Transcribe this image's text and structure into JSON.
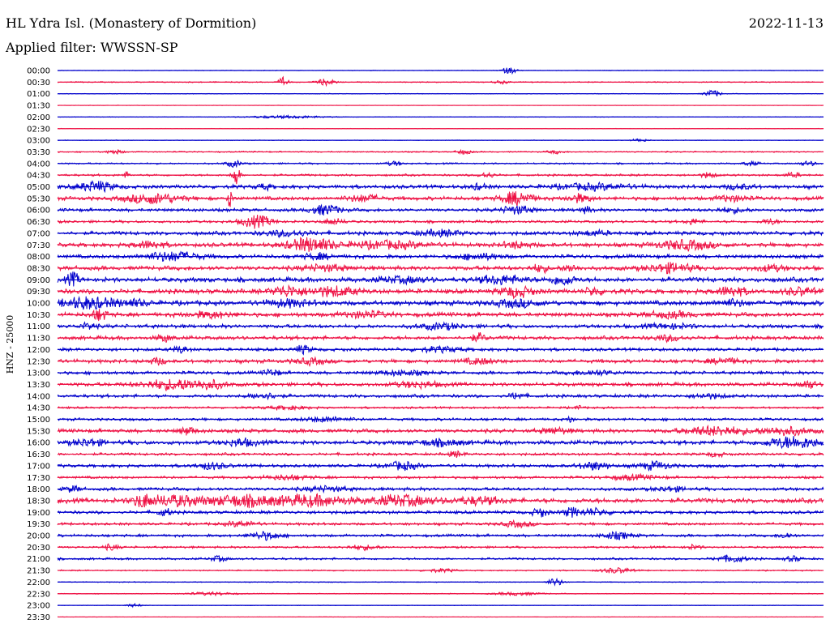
{
  "header": {
    "title": "HL Ydra Isl. (Monastery of Dormition)",
    "date": "2022-11-13",
    "filter_text": "Applied filter: WWSSN-SP"
  },
  "chart_data": {
    "type": "line",
    "title": "HL Ydra Isl. (Monastery of Dormition)",
    "date": "2022-11-13",
    "filter": "WWSSN-SP",
    "ylabel": "HNZ - 25000",
    "trace_colors": [
      "#0000cc",
      "#ee1144"
    ],
    "rows": [
      {
        "label": "00:00",
        "activity": 0.05,
        "events": [
          [
            0.59,
            0.6,
            0.01
          ]
        ]
      },
      {
        "label": "00:30",
        "activity": 0.1,
        "events": [
          [
            0.295,
            0.9,
            0.006
          ],
          [
            0.35,
            0.6,
            0.012
          ],
          [
            0.58,
            0.3,
            0.01
          ]
        ]
      },
      {
        "label": "01:00",
        "activity": 0.06,
        "events": [
          [
            0.855,
            0.7,
            0.01
          ]
        ]
      },
      {
        "label": "01:30",
        "activity": 0.04,
        "events": []
      },
      {
        "label": "02:00",
        "activity": 0.05,
        "events": [
          [
            0.3,
            0.25,
            0.05
          ]
        ]
      },
      {
        "label": "02:30",
        "activity": 0.05,
        "events": []
      },
      {
        "label": "03:00",
        "activity": 0.06,
        "events": [
          [
            0.76,
            0.3,
            0.01
          ]
        ]
      },
      {
        "label": "03:30",
        "activity": 0.12,
        "events": [
          [
            0.075,
            0.4,
            0.01
          ],
          [
            0.53,
            0.4,
            0.01
          ],
          [
            0.65,
            0.3,
            0.01
          ]
        ]
      },
      {
        "label": "04:00",
        "activity": 0.15,
        "events": [
          [
            0.23,
            0.6,
            0.01
          ],
          [
            0.44,
            0.4,
            0.01
          ],
          [
            0.905,
            0.4,
            0.01
          ],
          [
            0.98,
            0.4,
            0.01
          ]
        ]
      },
      {
        "label": "04:30",
        "activity": 0.2,
        "events": [
          [
            0.233,
            1.8,
            0.005
          ],
          [
            0.09,
            0.5,
            0.005
          ],
          [
            0.56,
            0.5,
            0.01
          ],
          [
            0.85,
            0.5,
            0.01
          ],
          [
            0.96,
            0.4,
            0.01
          ]
        ]
      },
      {
        "label": "05:00",
        "activity": 0.35,
        "events": [
          [
            0.05,
            0.9,
            0.022
          ],
          [
            0.27,
            0.5,
            0.01
          ],
          [
            0.55,
            0.5,
            0.01
          ],
          [
            0.7,
            0.5,
            0.05
          ],
          [
            0.89,
            0.4,
            0.02
          ]
        ]
      },
      {
        "label": "05:30",
        "activity": 0.35,
        "events": [
          [
            0.125,
            0.9,
            0.035
          ],
          [
            0.226,
            1.6,
            0.004
          ],
          [
            0.4,
            0.6,
            0.02
          ],
          [
            0.6,
            1.2,
            0.02
          ],
          [
            0.68,
            0.7,
            0.015
          ],
          [
            0.88,
            0.5,
            0.02
          ]
        ]
      },
      {
        "label": "06:00",
        "activity": 0.3,
        "events": [
          [
            0.35,
            0.9,
            0.02
          ],
          [
            0.6,
            0.7,
            0.02
          ],
          [
            0.69,
            0.5,
            0.01
          ],
          [
            0.88,
            0.4,
            0.02
          ]
        ]
      },
      {
        "label": "06:30",
        "activity": 0.25,
        "events": [
          [
            0.26,
            1.1,
            0.02
          ],
          [
            0.36,
            0.5,
            0.015
          ],
          [
            0.83,
            0.5,
            0.01
          ],
          [
            0.93,
            0.5,
            0.01
          ]
        ]
      },
      {
        "label": "07:00",
        "activity": 0.35,
        "events": [
          [
            0.3,
            0.5,
            0.03
          ],
          [
            0.5,
            0.5,
            0.03
          ],
          [
            0.7,
            0.4,
            0.02
          ]
        ]
      },
      {
        "label": "07:30",
        "activity": 0.4,
        "events": [
          [
            0.33,
            1.2,
            0.03
          ],
          [
            0.43,
            0.6,
            0.05
          ],
          [
            0.82,
            0.8,
            0.035
          ],
          [
            0.12,
            0.6,
            0.02
          ],
          [
            0.6,
            0.5,
            0.02
          ]
        ]
      },
      {
        "label": "08:00",
        "activity": 0.35,
        "events": [
          [
            0.15,
            0.8,
            0.035
          ],
          [
            0.34,
            0.5,
            0.02
          ],
          [
            0.55,
            0.5,
            0.03
          ]
        ]
      },
      {
        "label": "08:30",
        "activity": 0.4,
        "events": [
          [
            0.8,
            0.8,
            0.03
          ],
          [
            0.63,
            0.7,
            0.01
          ],
          [
            0.67,
            0.6,
            0.01
          ],
          [
            0.35,
            0.5,
            0.03
          ],
          [
            0.93,
            0.5,
            0.02
          ]
        ]
      },
      {
        "label": "09:00",
        "activity": 0.45,
        "events": [
          [
            0.02,
            1.2,
            0.008
          ],
          [
            0.58,
            0.7,
            0.03
          ],
          [
            0.66,
            0.9,
            0.015
          ],
          [
            0.45,
            0.5,
            0.03
          ]
        ]
      },
      {
        "label": "09:30",
        "activity": 0.45,
        "events": [
          [
            0.3,
            0.9,
            0.02
          ],
          [
            0.36,
            0.8,
            0.03
          ],
          [
            0.6,
            0.9,
            0.02
          ],
          [
            0.7,
            0.7,
            0.01
          ],
          [
            0.88,
            0.8,
            0.02
          ],
          [
            0.97,
            0.6,
            0.02
          ]
        ]
      },
      {
        "label": "10:00",
        "activity": 0.45,
        "events": [
          [
            0.04,
            1.0,
            0.035
          ],
          [
            0.1,
            0.5,
            0.02
          ],
          [
            0.3,
            0.6,
            0.03
          ],
          [
            0.6,
            0.6,
            0.03
          ],
          [
            0.88,
            0.5,
            0.02
          ]
        ]
      },
      {
        "label": "10:30",
        "activity": 0.4,
        "events": [
          [
            0.055,
            1.0,
            0.01
          ],
          [
            0.2,
            0.5,
            0.03
          ],
          [
            0.4,
            0.5,
            0.03
          ],
          [
            0.8,
            0.5,
            0.03
          ]
        ]
      },
      {
        "label": "11:00",
        "activity": 0.35,
        "events": [
          [
            0.04,
            0.6,
            0.01
          ],
          [
            0.5,
            0.5,
            0.03
          ],
          [
            0.8,
            0.4,
            0.03
          ]
        ]
      },
      {
        "label": "11:30",
        "activity": 0.35,
        "events": [
          [
            0.14,
            0.6,
            0.01
          ],
          [
            0.55,
            0.7,
            0.01
          ],
          [
            0.8,
            0.5,
            0.02
          ]
        ]
      },
      {
        "label": "12:00",
        "activity": 0.3,
        "events": [
          [
            0.16,
            0.6,
            0.01
          ],
          [
            0.32,
            0.7,
            0.01
          ],
          [
            0.5,
            0.4,
            0.03
          ]
        ]
      },
      {
        "label": "12:30",
        "activity": 0.35,
        "events": [
          [
            0.13,
            0.6,
            0.01
          ],
          [
            0.33,
            0.5,
            0.02
          ],
          [
            0.55,
            0.5,
            0.02
          ],
          [
            0.87,
            0.5,
            0.02
          ]
        ]
      },
      {
        "label": "13:00",
        "activity": 0.3,
        "events": [
          [
            0.28,
            0.6,
            0.01
          ],
          [
            0.45,
            0.4,
            0.03
          ],
          [
            0.7,
            0.4,
            0.03
          ]
        ]
      },
      {
        "label": "13:30",
        "activity": 0.35,
        "events": [
          [
            0.15,
            0.9,
            0.04
          ],
          [
            0.2,
            0.6,
            0.02
          ],
          [
            0.47,
            0.5,
            0.03
          ],
          [
            0.98,
            0.7,
            0.01
          ]
        ]
      },
      {
        "label": "14:00",
        "activity": 0.3,
        "events": [
          [
            0.27,
            0.5,
            0.02
          ],
          [
            0.6,
            0.6,
            0.01
          ],
          [
            0.85,
            0.4,
            0.02
          ]
        ]
      },
      {
        "label": "14:30",
        "activity": 0.2,
        "events": [
          [
            0.68,
            0.8,
            0.003
          ],
          [
            0.3,
            0.3,
            0.03
          ]
        ]
      },
      {
        "label": "15:00",
        "activity": 0.25,
        "events": [
          [
            0.67,
            0.6,
            0.004
          ],
          [
            0.35,
            0.4,
            0.03
          ]
        ]
      },
      {
        "label": "15:30",
        "activity": 0.35,
        "events": [
          [
            0.17,
            0.7,
            0.01
          ],
          [
            0.65,
            0.5,
            0.02
          ],
          [
            0.86,
            0.8,
            0.04
          ],
          [
            0.95,
            0.7,
            0.03
          ]
        ]
      },
      {
        "label": "16:00",
        "activity": 0.4,
        "events": [
          [
            0.04,
            0.6,
            0.02
          ],
          [
            0.24,
            0.6,
            0.02
          ],
          [
            0.5,
            0.5,
            0.03
          ],
          [
            0.96,
            1.0,
            0.035
          ]
        ]
      },
      {
        "label": "16:30",
        "activity": 0.25,
        "events": [
          [
            0.52,
            0.5,
            0.01
          ],
          [
            0.86,
            0.4,
            0.01
          ]
        ]
      },
      {
        "label": "17:00",
        "activity": 0.3,
        "events": [
          [
            0.2,
            0.6,
            0.02
          ],
          [
            0.45,
            0.7,
            0.02
          ],
          [
            0.7,
            0.7,
            0.02
          ],
          [
            0.78,
            0.7,
            0.02
          ]
        ]
      },
      {
        "label": "17:30",
        "activity": 0.25,
        "events": [
          [
            0.3,
            0.4,
            0.03
          ],
          [
            0.75,
            0.4,
            0.03
          ]
        ]
      },
      {
        "label": "18:00",
        "activity": 0.3,
        "events": [
          [
            0.02,
            0.5,
            0.01
          ],
          [
            0.35,
            0.4,
            0.03
          ],
          [
            0.8,
            0.4,
            0.02
          ]
        ]
      },
      {
        "label": "18:30",
        "activity": 0.45,
        "events": [
          [
            0.11,
            1.0,
            0.01
          ],
          [
            0.15,
            0.9,
            0.04
          ],
          [
            0.24,
            0.9,
            0.04
          ],
          [
            0.33,
            0.9,
            0.05
          ],
          [
            0.45,
            0.9,
            0.04
          ],
          [
            0.55,
            0.6,
            0.03
          ]
        ]
      },
      {
        "label": "19:00",
        "activity": 0.3,
        "events": [
          [
            0.14,
            0.6,
            0.01
          ],
          [
            0.63,
            0.8,
            0.01
          ],
          [
            0.67,
            0.8,
            0.01
          ],
          [
            0.7,
            0.6,
            0.02
          ]
        ]
      },
      {
        "label": "19:30",
        "activity": 0.25,
        "events": [
          [
            0.24,
            0.5,
            0.02
          ],
          [
            0.6,
            0.5,
            0.02
          ]
        ]
      },
      {
        "label": "20:00",
        "activity": 0.25,
        "events": [
          [
            0.27,
            0.7,
            0.02
          ],
          [
            0.73,
            0.6,
            0.02
          ],
          [
            0.95,
            0.5,
            0.01
          ]
        ]
      },
      {
        "label": "20:30",
        "activity": 0.2,
        "events": [
          [
            0.07,
            0.5,
            0.01
          ],
          [
            0.4,
            0.4,
            0.02
          ],
          [
            0.83,
            0.4,
            0.01
          ]
        ]
      },
      {
        "label": "21:00",
        "activity": 0.2,
        "events": [
          [
            0.21,
            0.5,
            0.01
          ],
          [
            0.88,
            0.6,
            0.02
          ],
          [
            0.96,
            0.5,
            0.01
          ]
        ]
      },
      {
        "label": "21:30",
        "activity": 0.12,
        "events": [
          [
            0.73,
            0.5,
            0.02
          ],
          [
            0.5,
            0.3,
            0.02
          ]
        ]
      },
      {
        "label": "22:00",
        "activity": 0.08,
        "events": [
          [
            0.65,
            0.7,
            0.01
          ]
        ]
      },
      {
        "label": "22:30",
        "activity": 0.08,
        "events": [
          [
            0.2,
            0.3,
            0.03
          ],
          [
            0.6,
            0.3,
            0.03
          ]
        ]
      },
      {
        "label": "23:00",
        "activity": 0.05,
        "events": [
          [
            0.1,
            0.3,
            0.01
          ]
        ]
      },
      {
        "label": "23:30",
        "activity": 0.04,
        "events": []
      }
    ]
  }
}
